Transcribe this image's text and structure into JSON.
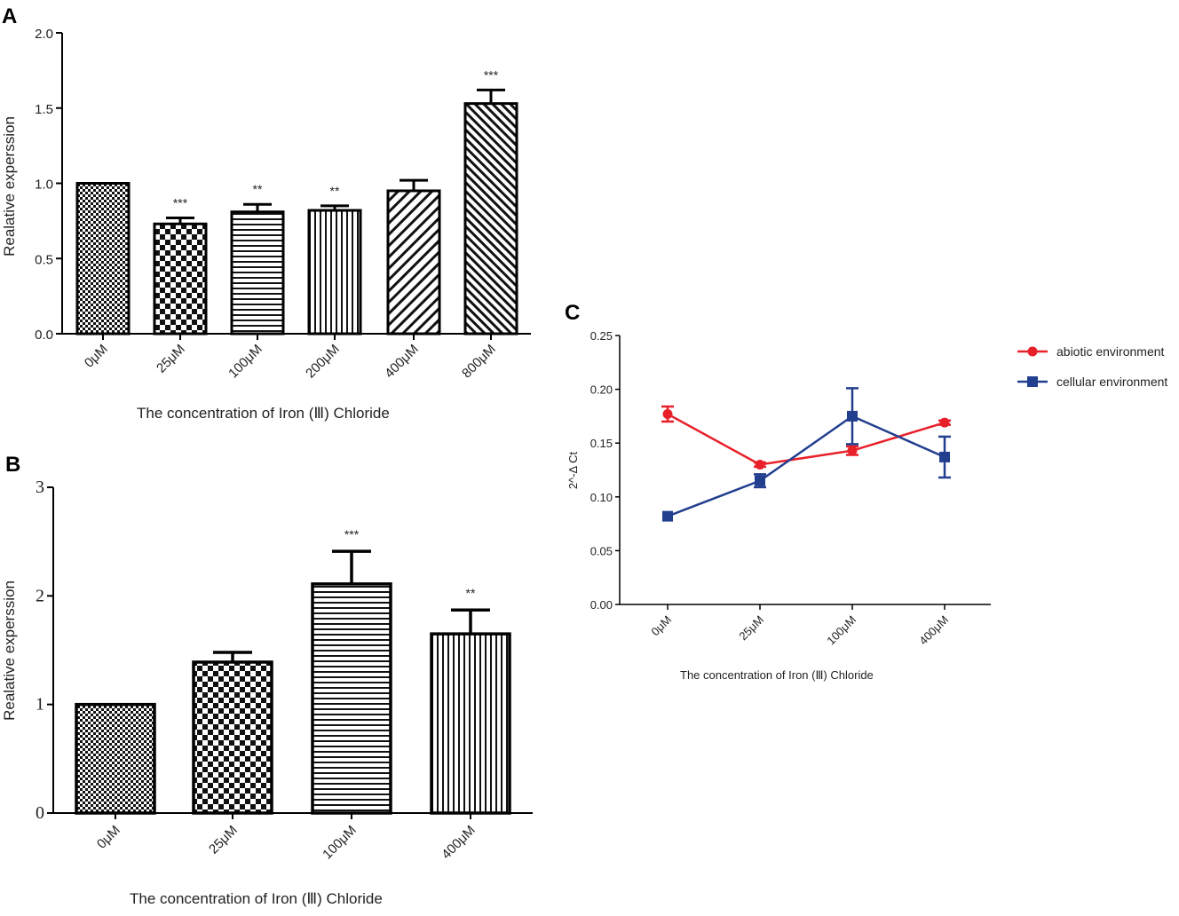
{
  "chart_data": [
    {
      "panel": "A",
      "type": "bar",
      "categories": [
        "0μM",
        "25μM",
        "100μM",
        "200μM",
        "400μM",
        "800μM"
      ],
      "values": [
        1.0,
        0.73,
        0.81,
        0.82,
        0.95,
        1.53
      ],
      "errors": [
        0.0,
        0.04,
        0.05,
        0.03,
        0.07,
        0.09
      ],
      "significance": [
        "",
        "***",
        "**",
        "**",
        "",
        "***"
      ],
      "patterns": [
        "fine-check",
        "checker",
        "hstripe",
        "vstripe",
        "diag",
        "diag-dense"
      ],
      "xlabel": "The concentration of Iron (Ⅲ) Chloride",
      "ylabel": "Realative experssion",
      "ylim": [
        0,
        2.0
      ],
      "yticks": [
        "0.0",
        "0.5",
        "1.0",
        "1.5",
        "2.0"
      ]
    },
    {
      "panel": "B",
      "type": "bar",
      "categories": [
        "0μM",
        "25μM",
        "100μM",
        "400μM"
      ],
      "values": [
        1.0,
        1.39,
        2.11,
        1.65
      ],
      "errors": [
        0.0,
        0.09,
        0.3,
        0.22
      ],
      "significance": [
        "",
        "",
        "***",
        "**"
      ],
      "patterns": [
        "fine-check",
        "checker",
        "hstripe",
        "vstripe"
      ],
      "xlabel": "The concentration of Iron (Ⅲ) Chloride",
      "ylabel": "Realative experssion",
      "ylim": [
        0,
        3
      ],
      "yticks": [
        "0",
        "1",
        "2",
        "3"
      ]
    },
    {
      "panel": "C",
      "type": "line",
      "categories": [
        "0μM",
        "25μM",
        "100μM",
        "400μM"
      ],
      "series": [
        {
          "name": "abiotic environment",
          "color": "#e8202a",
          "marker": "circle",
          "values": [
            0.177,
            0.13,
            0.143,
            0.169
          ],
          "errors": [
            0.007,
            0.002,
            0.004,
            0.002
          ]
        },
        {
          "name": "cellular environment",
          "color": "#223e8f",
          "marker": "square",
          "values": [
            0.082,
            0.115,
            0.175,
            0.137
          ],
          "errors": [
            0.0,
            0.006,
            0.026,
            0.019
          ]
        }
      ],
      "xlabel": "The concentration of Iron (Ⅲ) Chloride",
      "ylabel": "2^-Δ Ct",
      "ylim": [
        0,
        0.25
      ],
      "yticks": [
        "0.00",
        "0.05",
        "0.10",
        "0.15",
        "0.20",
        "0.25"
      ],
      "legend": "top-right"
    }
  ]
}
